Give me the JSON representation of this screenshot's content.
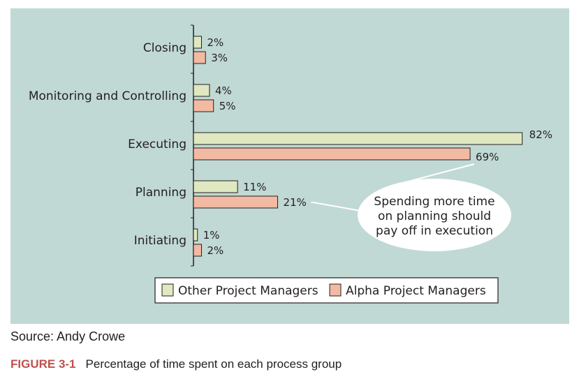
{
  "chart_data": {
    "type": "bar",
    "orientation": "horizontal",
    "categories": [
      "Closing",
      "Monitoring and Controlling",
      "Executing",
      "Planning",
      "Initiating"
    ],
    "series": [
      {
        "name": "Other Project Managers",
        "values": [
          2,
          4,
          82,
          11,
          1
        ],
        "labels": [
          "2%",
          "4%",
          "82%",
          "11%",
          "1%"
        ],
        "color": "#dfe8c0"
      },
      {
        "name": "Alpha Project Managers",
        "values": [
          3,
          5,
          69,
          21,
          2
        ],
        "labels": [
          "3%",
          "5%",
          "69%",
          "21%",
          "2%"
        ],
        "color": "#f2b9a3"
      }
    ],
    "xlim": [
      0,
      100
    ],
    "grid": false,
    "legend_position": "bottom",
    "annotation": {
      "lines": [
        "Spending more time",
        "on planning should",
        "pay off in execution"
      ],
      "points_to": [
        "Executing: Alpha Project Managers",
        "Planning: Alpha Project Managers"
      ]
    },
    "background": "#c0d9d5"
  },
  "source": "Source: Andy Crowe",
  "caption": {
    "figure_number": "FIGURE 3-1",
    "text": "Percentage of time spent on each process group"
  }
}
